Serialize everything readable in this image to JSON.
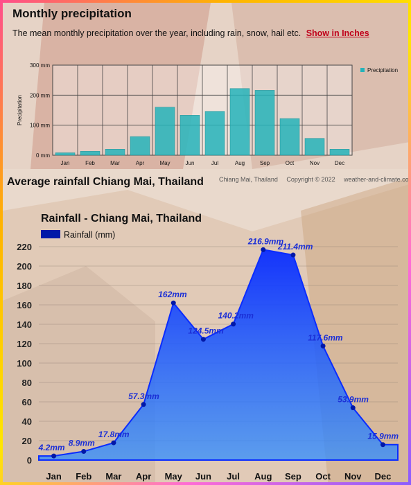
{
  "colors": {
    "teal": "#24b3ba",
    "blue": "#1c3fff",
    "blue_dark": "#0018a8",
    "label_blue": "#1b2fd6"
  },
  "header": {
    "title": "Monthly precipitation",
    "description": "The mean monthly precipitation over the year, including rain, snow, hail etc.",
    "link": "Show in Inches"
  },
  "credit": {
    "location": "Chiang Mai, Thailand",
    "copyright": "Copyright © 2022",
    "site": "weather-and-climate.com"
  },
  "section_title": "Average rainfall Chiang Mai, Thailand",
  "chart_data": [
    {
      "type": "bar",
      "title": "",
      "categories": [
        "Jan",
        "Feb",
        "Mar",
        "Apr",
        "May",
        "Jun",
        "Jul",
        "Aug",
        "Sep",
        "Oct",
        "Nov",
        "Dec"
      ],
      "series": [
        {
          "name": "Precipitation",
          "values": [
            8,
            13,
            20,
            62,
            160,
            133,
            146,
            222,
            216,
            122,
            56,
            20
          ]
        }
      ],
      "ylabel": "Precipitation",
      "ylim": [
        0,
        300
      ],
      "yticks": [
        0,
        100,
        200,
        300
      ],
      "ytick_labels": [
        "0 mm",
        "100 mm",
        "200 mm",
        "300 mm"
      ],
      "grid": true,
      "legend": "top-right"
    },
    {
      "type": "area",
      "title": "Rainfall - Chiang Mai, Thailand",
      "categories": [
        "Jan",
        "Feb",
        "Mar",
        "Apr",
        "May",
        "Jun",
        "Jul",
        "Aug",
        "Sep",
        "Oct",
        "Nov",
        "Dec"
      ],
      "series": [
        {
          "name": "Rainfall (mm)",
          "values": [
            4.2,
            8.9,
            17.8,
            57.3,
            162,
            124.5,
            140.2,
            216.9,
            211.4,
            117.6,
            53.9,
            15.9
          ]
        }
      ],
      "data_labels": [
        "4.2mm",
        "8.9mm",
        "17.8mm",
        "57.3mm",
        "162mm",
        "124.5mm",
        "140.2mm",
        "216.9mm",
        "211.4mm",
        "117.6mm",
        "53.9mm",
        "15.9mm"
      ],
      "ylim": [
        0,
        220
      ],
      "yticks": [
        0,
        20,
        40,
        60,
        80,
        100,
        120,
        140,
        160,
        180,
        200,
        220
      ],
      "grid": true,
      "legend": "top-left"
    }
  ]
}
